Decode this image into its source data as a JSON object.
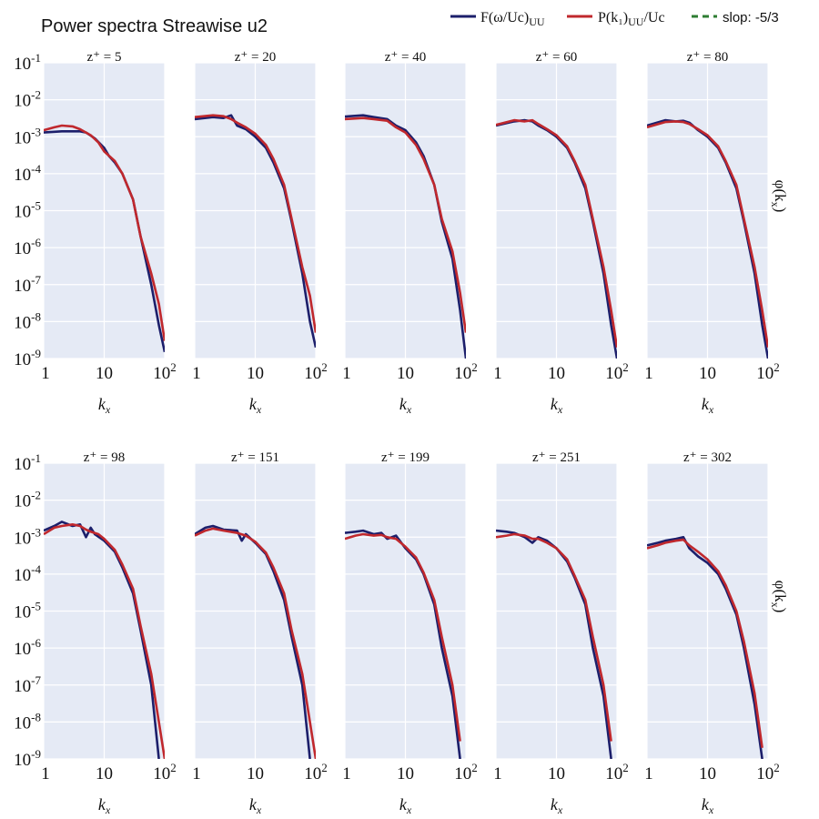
{
  "chart_data": {
    "type": "line",
    "title": "Power spectra Streawise u2",
    "xlabel": "k_x",
    "ylabel": "φ(k_x)",
    "xscale": "log",
    "yscale": "log",
    "xlim": [
      1,
      100
    ],
    "ylim": [
      1e-09,
      0.1
    ],
    "xticks": [
      "1",
      "10",
      "10^2"
    ],
    "yticks": [
      "10^-1",
      "10^-2",
      "10^-3",
      "10^-4",
      "10^-5",
      "10^-6",
      "10^-7",
      "10^-8",
      "10^-9"
    ],
    "grid": true,
    "background": "#e5eaf5",
    "legend": {
      "placement": "top-right",
      "entries": [
        {
          "label": "F(ω/Uc)_UU",
          "color": "#1c1f6b",
          "style": "solid"
        },
        {
          "label": "P(k₁)_UU/Uc",
          "color": "#c0282d",
          "style": "solid"
        },
        {
          "label": "slop: -5/3",
          "color": "#2e7d32",
          "style": "dashed"
        }
      ]
    },
    "panels": [
      {
        "label": "z⁺ = 5",
        "F": [
          [
            1,
            0.0013
          ],
          [
            2,
            0.0014
          ],
          [
            3,
            0.0014
          ],
          [
            4,
            0.0014
          ],
          [
            5,
            0.0013
          ],
          [
            7,
            0.0009
          ],
          [
            10,
            0.0005
          ],
          [
            12,
            0.0003
          ],
          [
            15,
            0.0002
          ],
          [
            20,
            0.0001
          ],
          [
            30,
            2e-05
          ],
          [
            40,
            2e-06
          ],
          [
            60,
            1e-07
          ],
          [
            80,
            8e-09
          ],
          [
            100,
            1.5e-09
          ]
        ],
        "P": [
          [
            1,
            0.0015
          ],
          [
            1.5,
            0.0018
          ],
          [
            2,
            0.002
          ],
          [
            3,
            0.0019
          ],
          [
            4,
            0.0016
          ],
          [
            6,
            0.0011
          ],
          [
            8,
            0.0007
          ],
          [
            10,
            0.0004
          ],
          [
            15,
            0.00022
          ],
          [
            20,
            0.0001
          ],
          [
            30,
            2e-05
          ],
          [
            40,
            2e-06
          ],
          [
            60,
            2e-07
          ],
          [
            80,
            3e-08
          ],
          [
            100,
            3e-09
          ]
        ]
      },
      {
        "label": "z⁺ = 20",
        "F": [
          [
            1,
            0.003
          ],
          [
            2,
            0.0034
          ],
          [
            3,
            0.0032
          ],
          [
            4,
            0.0038
          ],
          [
            5,
            0.002
          ],
          [
            7,
            0.0016
          ],
          [
            10,
            0.001
          ],
          [
            15,
            0.0005
          ],
          [
            20,
            0.0002
          ],
          [
            30,
            4e-05
          ],
          [
            40,
            5e-06
          ],
          [
            60,
            2e-07
          ],
          [
            80,
            1e-08
          ],
          [
            100,
            2e-09
          ]
        ],
        "P": [
          [
            1,
            0.0034
          ],
          [
            2,
            0.0038
          ],
          [
            3,
            0.0036
          ],
          [
            4,
            0.003
          ],
          [
            5,
            0.0024
          ],
          [
            7,
            0.0018
          ],
          [
            10,
            0.0012
          ],
          [
            15,
            0.0006
          ],
          [
            20,
            0.00025
          ],
          [
            30,
            5e-05
          ],
          [
            40,
            6e-06
          ],
          [
            60,
            3e-07
          ],
          [
            80,
            5e-08
          ],
          [
            100,
            5e-09
          ]
        ]
      },
      {
        "label": "z⁺ = 40",
        "F": [
          [
            1,
            0.0035
          ],
          [
            2,
            0.0038
          ],
          [
            3,
            0.0034
          ],
          [
            5,
            0.003
          ],
          [
            7,
            0.002
          ],
          [
            10,
            0.0015
          ],
          [
            15,
            0.0007
          ],
          [
            20,
            0.0003
          ],
          [
            30,
            5e-05
          ],
          [
            40,
            5e-06
          ],
          [
            60,
            5e-07
          ],
          [
            80,
            2e-08
          ],
          [
            100,
            1e-09
          ]
        ],
        "P": [
          [
            1,
            0.003
          ],
          [
            2,
            0.0032
          ],
          [
            3,
            0.003
          ],
          [
            5,
            0.0027
          ],
          [
            7,
            0.0018
          ],
          [
            10,
            0.0013
          ],
          [
            15,
            0.0006
          ],
          [
            20,
            0.00025
          ],
          [
            30,
            5e-05
          ],
          [
            40,
            6e-06
          ],
          [
            60,
            8e-07
          ],
          [
            80,
            6e-08
          ],
          [
            100,
            5e-09
          ]
        ]
      },
      {
        "label": "z⁺ = 60",
        "F": [
          [
            1,
            0.002
          ],
          [
            2,
            0.0026
          ],
          [
            3,
            0.0028
          ],
          [
            4,
            0.0026
          ],
          [
            5,
            0.002
          ],
          [
            7,
            0.0015
          ],
          [
            10,
            0.001
          ],
          [
            15,
            0.0005
          ],
          [
            20,
            0.0002
          ],
          [
            30,
            4e-05
          ],
          [
            40,
            5e-06
          ],
          [
            60,
            2e-07
          ],
          [
            80,
            8e-09
          ],
          [
            100,
            1e-09
          ]
        ],
        "P": [
          [
            1,
            0.0021
          ],
          [
            2,
            0.0028
          ],
          [
            3,
            0.0026
          ],
          [
            4,
            0.0028
          ],
          [
            5,
            0.0022
          ],
          [
            7,
            0.0016
          ],
          [
            10,
            0.0011
          ],
          [
            15,
            0.00055
          ],
          [
            20,
            0.00022
          ],
          [
            30,
            5e-05
          ],
          [
            40,
            6e-06
          ],
          [
            60,
            3e-07
          ],
          [
            80,
            2e-08
          ],
          [
            100,
            2e-09
          ]
        ]
      },
      {
        "label": "z⁺ = 80",
        "F": [
          [
            1,
            0.002
          ],
          [
            2,
            0.0028
          ],
          [
            3,
            0.0026
          ],
          [
            4,
            0.0027
          ],
          [
            5,
            0.0024
          ],
          [
            7,
            0.0015
          ],
          [
            10,
            0.001
          ],
          [
            15,
            0.0005
          ],
          [
            20,
            0.0002
          ],
          [
            30,
            4e-05
          ],
          [
            40,
            5e-06
          ],
          [
            60,
            2e-07
          ],
          [
            80,
            8e-09
          ],
          [
            100,
            1e-09
          ]
        ],
        "P": [
          [
            1,
            0.0018
          ],
          [
            2,
            0.0025
          ],
          [
            3,
            0.0026
          ],
          [
            4,
            0.0025
          ],
          [
            5,
            0.0022
          ],
          [
            7,
            0.0016
          ],
          [
            10,
            0.0011
          ],
          [
            15,
            0.00055
          ],
          [
            20,
            0.00022
          ],
          [
            30,
            5e-05
          ],
          [
            40,
            6e-06
          ],
          [
            60,
            3e-07
          ],
          [
            80,
            2e-08
          ],
          [
            100,
            2e-09
          ]
        ]
      },
      {
        "label": "z⁺ = 98",
        "F": [
          [
            1,
            0.0015
          ],
          [
            1.5,
            0.002
          ],
          [
            2,
            0.0026
          ],
          [
            3,
            0.002
          ],
          [
            4,
            0.0022
          ],
          [
            5,
            0.001
          ],
          [
            6,
            0.0018
          ],
          [
            7,
            0.0012
          ],
          [
            10,
            0.0008
          ],
          [
            15,
            0.0004
          ],
          [
            20,
            0.00015
          ],
          [
            30,
            3e-05
          ],
          [
            40,
            3e-06
          ],
          [
            60,
            1e-07
          ],
          [
            80,
            1e-09
          ]
        ],
        "P": [
          [
            1,
            0.0012
          ],
          [
            1.5,
            0.0018
          ],
          [
            2,
            0.002
          ],
          [
            3,
            0.0022
          ],
          [
            4,
            0.002
          ],
          [
            5,
            0.0016
          ],
          [
            6,
            0.0014
          ],
          [
            8,
            0.0012
          ],
          [
            10,
            0.0009
          ],
          [
            15,
            0.00045
          ],
          [
            20,
            0.00018
          ],
          [
            30,
            4e-05
          ],
          [
            40,
            4e-06
          ],
          [
            60,
            2e-07
          ],
          [
            80,
            1e-08
          ],
          [
            100,
            1e-09
          ]
        ]
      },
      {
        "label": "z⁺ = 151",
        "F": [
          [
            1,
            0.0012
          ],
          [
            1.5,
            0.0018
          ],
          [
            2,
            0.002
          ],
          [
            3,
            0.0016
          ],
          [
            5,
            0.0015
          ],
          [
            6,
            0.0008
          ],
          [
            7,
            0.0012
          ],
          [
            10,
            0.0007
          ],
          [
            15,
            0.00035
          ],
          [
            20,
            0.00012
          ],
          [
            30,
            2e-05
          ],
          [
            40,
            2e-06
          ],
          [
            60,
            1e-07
          ],
          [
            80,
            1e-09
          ]
        ],
        "P": [
          [
            1,
            0.0011
          ],
          [
            1.5,
            0.0015
          ],
          [
            2,
            0.0017
          ],
          [
            3,
            0.0015
          ],
          [
            5,
            0.0013
          ],
          [
            7,
            0.0011
          ],
          [
            10,
            0.00075
          ],
          [
            15,
            0.00038
          ],
          [
            20,
            0.00015
          ],
          [
            30,
            3e-05
          ],
          [
            40,
            3e-06
          ],
          [
            60,
            2e-07
          ],
          [
            80,
            1e-08
          ],
          [
            100,
            1e-09
          ]
        ]
      },
      {
        "label": "z⁺ = 199",
        "F": [
          [
            1,
            0.0013
          ],
          [
            1.5,
            0.0014
          ],
          [
            2,
            0.0015
          ],
          [
            3,
            0.0012
          ],
          [
            4,
            0.0013
          ],
          [
            5,
            0.0009
          ],
          [
            7,
            0.0011
          ],
          [
            10,
            0.0005
          ],
          [
            15,
            0.00025
          ],
          [
            20,
            0.0001
          ],
          [
            30,
            1.5e-05
          ],
          [
            40,
            1e-06
          ],
          [
            60,
            5e-08
          ],
          [
            80,
            1e-09
          ]
        ],
        "P": [
          [
            1,
            0.0009
          ],
          [
            1.5,
            0.0011
          ],
          [
            2,
            0.0012
          ],
          [
            3,
            0.0011
          ],
          [
            4,
            0.00115
          ],
          [
            5,
            0.001
          ],
          [
            7,
            0.0009
          ],
          [
            10,
            0.00055
          ],
          [
            15,
            0.00028
          ],
          [
            20,
            0.00011
          ],
          [
            30,
            2e-05
          ],
          [
            40,
            2e-06
          ],
          [
            60,
            1e-07
          ],
          [
            80,
            3e-09
          ]
        ]
      },
      {
        "label": "z⁺ = 251",
        "F": [
          [
            1,
            0.0015
          ],
          [
            1.5,
            0.0014
          ],
          [
            2,
            0.0013
          ],
          [
            3,
            0.001
          ],
          [
            4,
            0.0007
          ],
          [
            5,
            0.001
          ],
          [
            7,
            0.0008
          ],
          [
            10,
            0.0005
          ],
          [
            15,
            0.00022
          ],
          [
            20,
            8e-05
          ],
          [
            30,
            1.5e-05
          ],
          [
            40,
            1e-06
          ],
          [
            60,
            5e-08
          ],
          [
            80,
            1e-09
          ]
        ],
        "P": [
          [
            1,
            0.001
          ],
          [
            1.5,
            0.0011
          ],
          [
            2,
            0.0012
          ],
          [
            3,
            0.0011
          ],
          [
            4,
            0.0009
          ],
          [
            5,
            0.0009
          ],
          [
            7,
            0.0007
          ],
          [
            10,
            0.0005
          ],
          [
            15,
            0.00025
          ],
          [
            20,
            9e-05
          ],
          [
            30,
            2e-05
          ],
          [
            40,
            2e-06
          ],
          [
            60,
            1e-07
          ],
          [
            80,
            3e-09
          ]
        ]
      },
      {
        "label": "z⁺ = 302",
        "F": [
          [
            1,
            0.0006
          ],
          [
            1.5,
            0.0007
          ],
          [
            2,
            0.0008
          ],
          [
            3,
            0.0009
          ],
          [
            4,
            0.001
          ],
          [
            5,
            0.0005
          ],
          [
            7,
            0.0003
          ],
          [
            10,
            0.0002
          ],
          [
            15,
            0.0001
          ],
          [
            20,
            4e-05
          ],
          [
            30,
            8e-06
          ],
          [
            40,
            1e-06
          ],
          [
            60,
            3e-08
          ],
          [
            80,
            1e-09
          ]
        ],
        "P": [
          [
            1,
            0.0005
          ],
          [
            1.5,
            0.0006
          ],
          [
            2,
            0.0007
          ],
          [
            3,
            0.0008
          ],
          [
            4,
            0.00085
          ],
          [
            5,
            0.0006
          ],
          [
            7,
            0.0004
          ],
          [
            10,
            0.00025
          ],
          [
            15,
            0.00012
          ],
          [
            20,
            5e-05
          ],
          [
            30,
            1e-05
          ],
          [
            40,
            1.5e-06
          ],
          [
            60,
            6e-08
          ],
          [
            80,
            2e-09
          ]
        ]
      }
    ]
  }
}
